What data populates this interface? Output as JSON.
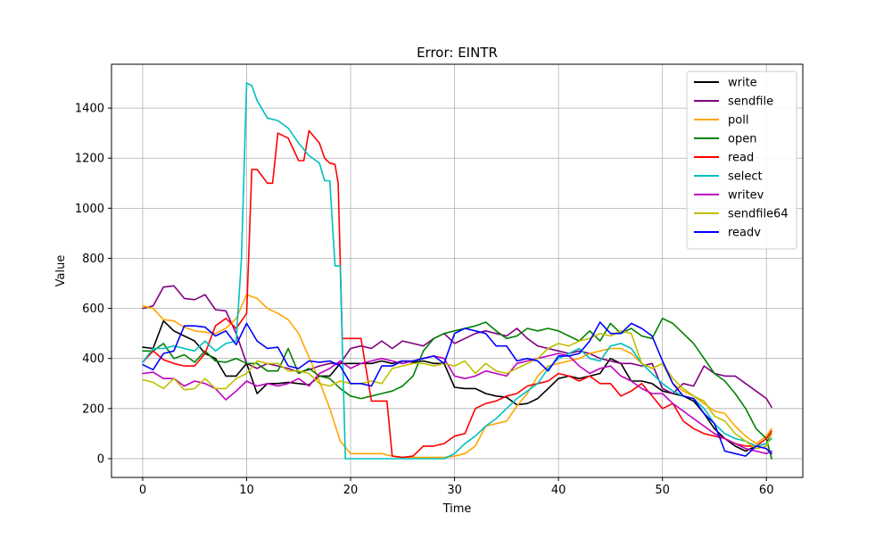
{
  "chart_data": {
    "type": "line",
    "title": "Error: EINTR",
    "xlabel": "Time",
    "ylabel": "Value",
    "xlim": [
      -3,
      63.5
    ],
    "ylim": [
      -75,
      1575
    ],
    "xticks": [
      0,
      10,
      20,
      30,
      40,
      50,
      60
    ],
    "yticks": [
      0,
      200,
      400,
      600,
      800,
      1000,
      1200,
      1400
    ],
    "grid": true,
    "legend_position": "top-right",
    "series": [
      {
        "name": "write",
        "color": "#000000",
        "x": [
          0,
          1,
          2,
          3,
          4,
          5,
          6,
          7,
          8,
          9,
          10,
          11,
          12,
          13,
          14,
          15,
          16,
          17,
          18,
          19,
          20,
          21,
          22,
          23,
          24,
          25,
          26,
          27,
          28,
          29,
          30,
          31,
          32,
          33,
          34,
          35,
          36,
          37,
          38,
          39,
          40,
          41,
          42,
          43,
          44,
          45,
          46,
          47,
          48,
          49,
          50,
          51,
          52,
          53,
          54,
          55,
          56,
          57,
          58,
          59,
          60,
          60.5
        ],
        "values": [
          445,
          440,
          550,
          510,
          490,
          470,
          420,
          400,
          330,
          330,
          380,
          260,
          300,
          300,
          305,
          300,
          295,
          330,
          330,
          380,
          380,
          380,
          380,
          390,
          380,
          390,
          385,
          390,
          380,
          380,
          285,
          280,
          280,
          260,
          250,
          245,
          215,
          220,
          240,
          280,
          320,
          330,
          320,
          330,
          340,
          400,
          380,
          310,
          310,
          300,
          270,
          260,
          250,
          230,
          180,
          120,
          80,
          50,
          30,
          50,
          60,
          100
        ]
      },
      {
        "name": "sendfile",
        "color": "#800080",
        "x": [
          0,
          1,
          2,
          3,
          4,
          5,
          6,
          7,
          8,
          9,
          10,
          11,
          12,
          13,
          14,
          15,
          16,
          17,
          18,
          19,
          20,
          21,
          22,
          23,
          24,
          25,
          26,
          27,
          28,
          29,
          30,
          31,
          32,
          33,
          34,
          35,
          36,
          37,
          38,
          39,
          40,
          41,
          42,
          43,
          44,
          45,
          46,
          47,
          48,
          49,
          50,
          51,
          52,
          53,
          54,
          55,
          56,
          57,
          58,
          59,
          60,
          60.5
        ],
        "values": [
          600,
          610,
          685,
          690,
          640,
          635,
          655,
          595,
          590,
          500,
          380,
          360,
          380,
          370,
          360,
          345,
          355,
          370,
          380,
          380,
          440,
          450,
          440,
          470,
          440,
          470,
          460,
          450,
          480,
          500,
          460,
          480,
          500,
          510,
          500,
          490,
          520,
          480,
          450,
          440,
          430,
          420,
          430,
          420,
          400,
          390,
          380,
          380,
          370,
          380,
          280,
          260,
          300,
          290,
          370,
          340,
          330,
          330,
          300,
          270,
          240,
          205
        ]
      },
      {
        "name": "poll",
        "color": "#ffa500",
        "x": [
          0,
          1,
          2,
          3,
          4,
          5,
          6,
          7,
          8,
          9,
          10,
          11,
          12,
          13,
          14,
          15,
          16,
          17,
          18,
          19,
          20,
          21,
          22,
          23,
          24,
          25,
          26,
          27,
          28,
          29,
          30,
          31,
          32,
          33,
          34,
          35,
          36,
          37,
          38,
          39,
          40,
          41,
          42,
          43,
          44,
          45,
          46,
          47,
          48,
          49,
          50,
          51,
          52,
          53,
          54,
          55,
          56,
          57,
          58,
          59,
          60,
          60.5
        ],
        "values": [
          610,
          600,
          555,
          550,
          525,
          510,
          505,
          500,
          520,
          560,
          655,
          640,
          600,
          580,
          555,
          500,
          405,
          310,
          200,
          70,
          20,
          20,
          20,
          20,
          10,
          5,
          5,
          5,
          5,
          5,
          10,
          20,
          50,
          130,
          140,
          150,
          210,
          260,
          330,
          370,
          380,
          390,
          400,
          420,
          430,
          440,
          440,
          420,
          380,
          360,
          380,
          300,
          270,
          250,
          220,
          190,
          180,
          130,
          90,
          60,
          90,
          120
        ]
      },
      {
        "name": "open",
        "color": "#008000",
        "x": [
          0,
          1,
          2,
          3,
          4,
          5,
          6,
          7,
          8,
          9,
          10,
          11,
          12,
          13,
          14,
          15,
          16,
          17,
          18,
          19,
          20,
          21,
          22,
          23,
          24,
          25,
          26,
          27,
          28,
          29,
          30,
          31,
          32,
          33,
          34,
          35,
          36,
          37,
          38,
          39,
          40,
          41,
          42,
          43,
          44,
          45,
          46,
          47,
          48,
          49,
          50,
          51,
          52,
          53,
          54,
          55,
          56,
          57,
          58,
          59,
          60,
          60.5
        ],
        "values": [
          430,
          430,
          460,
          400,
          415,
          385,
          430,
          390,
          385,
          400,
          380,
          380,
          350,
          350,
          440,
          340,
          360,
          330,
          320,
          280,
          250,
          240,
          250,
          260,
          270,
          290,
          330,
          430,
          480,
          500,
          510,
          520,
          530,
          545,
          510,
          480,
          490,
          520,
          510,
          520,
          510,
          490,
          470,
          510,
          470,
          540,
          500,
          520,
          490,
          480,
          560,
          540,
          500,
          460,
          400,
          340,
          310,
          260,
          200,
          120,
          80,
          0
        ]
      },
      {
        "name": "read",
        "color": "#ff0000",
        "x": [
          0,
          1,
          2,
          3,
          4,
          5,
          6,
          7,
          8,
          9,
          10,
          10.5,
          11,
          12,
          12.5,
          13,
          14,
          15,
          15.5,
          16,
          17,
          17.5,
          18,
          18.5,
          18.8,
          19.2,
          20,
          21,
          22,
          23,
          23.5,
          24,
          25,
          26,
          27,
          28,
          29,
          30,
          31,
          32,
          33,
          34,
          35,
          36,
          37,
          38,
          39,
          40,
          41,
          42,
          43,
          44,
          45,
          46,
          47,
          48,
          49,
          50,
          51,
          52,
          53,
          54,
          55,
          56,
          57,
          58,
          59,
          60,
          60.5
        ],
        "values": [
          385,
          430,
          395,
          380,
          370,
          370,
          420,
          530,
          560,
          520,
          580,
          1155,
          1155,
          1100,
          1100,
          1300,
          1280,
          1190,
          1190,
          1310,
          1260,
          1200,
          1180,
          1175,
          1100,
          480,
          480,
          480,
          230,
          230,
          230,
          10,
          5,
          10,
          50,
          50,
          60,
          90,
          100,
          200,
          220,
          230,
          250,
          260,
          290,
          300,
          310,
          340,
          330,
          310,
          330,
          300,
          300,
          250,
          270,
          300,
          250,
          200,
          220,
          150,
          120,
          100,
          90,
          80,
          60,
          50,
          50,
          80,
          110
        ]
      },
      {
        "name": "select",
        "color": "#00bfbf",
        "x": [
          0,
          1,
          2,
          3,
          4,
          5,
          6,
          7,
          8,
          9,
          9.5,
          10,
          10.5,
          11,
          12,
          13,
          14,
          15,
          16,
          17,
          17.5,
          18,
          18.5,
          19,
          19.5,
          20,
          21,
          22,
          23,
          24,
          25,
          26,
          27,
          28,
          29,
          30,
          31,
          32,
          33,
          34,
          35,
          36,
          37,
          38,
          39,
          40,
          41,
          42,
          43,
          44,
          45,
          46,
          47,
          48,
          49,
          50,
          51,
          52,
          53,
          54,
          55,
          56,
          57,
          58,
          59,
          60,
          60.5
        ],
        "values": [
          385,
          440,
          440,
          450,
          440,
          430,
          470,
          430,
          460,
          470,
          800,
          1500,
          1490,
          1430,
          1360,
          1350,
          1320,
          1260,
          1210,
          1180,
          1110,
          1110,
          770,
          770,
          0,
          0,
          0,
          0,
          0,
          0,
          0,
          0,
          0,
          0,
          0,
          20,
          60,
          90,
          130,
          160,
          200,
          240,
          270,
          300,
          360,
          400,
          420,
          440,
          400,
          390,
          450,
          460,
          440,
          380,
          340,
          300,
          270,
          250,
          240,
          200,
          140,
          100,
          80,
          70,
          50,
          60,
          80
        ]
      },
      {
        "name": "writev",
        "color": "#bf00bf",
        "x": [
          0,
          1,
          2,
          3,
          4,
          5,
          6,
          7,
          8,
          9,
          10,
          11,
          12,
          13,
          14,
          15,
          16,
          17,
          18,
          19,
          20,
          21,
          22,
          23,
          24,
          25,
          26,
          27,
          28,
          29,
          30,
          31,
          32,
          33,
          34,
          35,
          36,
          37,
          38,
          39,
          40,
          41,
          42,
          43,
          44,
          45,
          46,
          47,
          48,
          49,
          50,
          51,
          52,
          53,
          54,
          55,
          56,
          57,
          58,
          59,
          60,
          60.5
        ],
        "values": [
          340,
          345,
          320,
          320,
          290,
          310,
          300,
          280,
          235,
          270,
          310,
          290,
          300,
          290,
          300,
          320,
          290,
          340,
          360,
          390,
          360,
          380,
          390,
          400,
          390,
          380,
          390,
          400,
          410,
          400,
          330,
          320,
          330,
          350,
          340,
          330,
          380,
          390,
          400,
          410,
          420,
          410,
          370,
          340,
          360,
          370,
          330,
          310,
          280,
          260,
          260,
          220,
          190,
          160,
          130,
          100,
          80,
          60,
          40,
          30,
          20,
          30
        ]
      },
      {
        "name": "sendfile64",
        "color": "#bfbf00",
        "x": [
          0,
          1,
          2,
          3,
          4,
          5,
          6,
          7,
          8,
          9,
          10,
          11,
          12,
          13,
          14,
          15,
          16,
          17,
          18,
          19,
          20,
          21,
          22,
          23,
          24,
          25,
          26,
          27,
          28,
          29,
          30,
          31,
          32,
          33,
          34,
          35,
          36,
          37,
          38,
          39,
          40,
          41,
          42,
          43,
          44,
          45,
          46,
          47,
          48,
          49,
          50,
          51,
          52,
          53,
          54,
          55,
          56,
          57,
          58,
          59,
          60,
          60.5
        ],
        "values": [
          315,
          305,
          280,
          320,
          275,
          280,
          320,
          280,
          280,
          320,
          340,
          390,
          380,
          380,
          350,
          350,
          340,
          300,
          290,
          310,
          300,
          300,
          310,
          300,
          360,
          370,
          380,
          380,
          370,
          380,
          370,
          390,
          340,
          380,
          350,
          340,
          360,
          380,
          400,
          440,
          460,
          450,
          470,
          480,
          500,
          490,
          510,
          500,
          380,
          360,
          380,
          320,
          280,
          250,
          230,
          170,
          150,
          100,
          70,
          40,
          50,
          100
        ]
      },
      {
        "name": "readv",
        "color": "#0000ff",
        "x": [
          0,
          1,
          2,
          3,
          4,
          5,
          6,
          7,
          8,
          9,
          10,
          11,
          12,
          13,
          14,
          15,
          16,
          17,
          18,
          19,
          20,
          21,
          22,
          23,
          24,
          25,
          26,
          27,
          28,
          29,
          30,
          31,
          32,
          33,
          34,
          35,
          36,
          37,
          38,
          39,
          40,
          41,
          42,
          43,
          44,
          45,
          46,
          47,
          48,
          49,
          50,
          51,
          52,
          53,
          54,
          55,
          56,
          57,
          58,
          59,
          60,
          60.5
        ],
        "values": [
          375,
          355,
          420,
          430,
          530,
          530,
          525,
          490,
          510,
          455,
          540,
          470,
          440,
          445,
          370,
          360,
          390,
          385,
          390,
          370,
          300,
          300,
          290,
          370,
          370,
          390,
          390,
          400,
          410,
          380,
          500,
          520,
          510,
          500,
          450,
          450,
          390,
          400,
          390,
          350,
          410,
          410,
          420,
          470,
          545,
          500,
          500,
          540,
          520,
          490,
          390,
          300,
          250,
          240,
          180,
          140,
          30,
          20,
          10,
          50,
          40,
          20
        ]
      }
    ]
  }
}
